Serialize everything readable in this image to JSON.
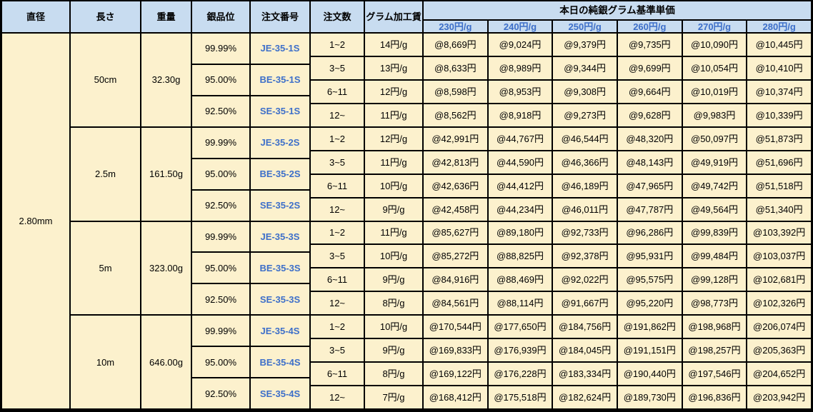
{
  "colors": {
    "header_bg": "#C8DCF0",
    "body_bg": "#FCF1CD",
    "accent_blue": "#3D6FC9",
    "grid_line": "#000000"
  },
  "table": {
    "headers": {
      "diameter": "直径",
      "length": "長さ",
      "weight": "重量",
      "purity": "銀品位",
      "order_no": "注文番号",
      "order_qty": "注文数",
      "gram_fee": "グラム加工賃",
      "price_group": "本日の純銀グラム基準単価",
      "price_columns": [
        "230円/g",
        "240円/g",
        "250円/g",
        "260円/g",
        "270円/g",
        "280円/g"
      ]
    },
    "diameter_value": "2.80mm",
    "blocks": [
      {
        "length": "50cm",
        "weight": "32.30g",
        "purities": [
          {
            "purity": "99.99%",
            "order_no": "JE-35-1S"
          },
          {
            "purity": "95.00%",
            "order_no": "BE-35-1S"
          },
          {
            "purity": "92.50%",
            "order_no": "SE-35-1S"
          }
        ],
        "tiers": [
          {
            "qty": "1~2",
            "fee": "14円/g",
            "prices": [
              "@8,669円",
              "@9,024円",
              "@9,379円",
              "@9,735円",
              "@10,090円",
              "@10,445円"
            ]
          },
          {
            "qty": "3~5",
            "fee": "13円/g",
            "prices": [
              "@8,633円",
              "@8,989円",
              "@9,344円",
              "@9,699円",
              "@10,054円",
              "@10,410円"
            ]
          },
          {
            "qty": "6~11",
            "fee": "12円/g",
            "prices": [
              "@8,598円",
              "@8,953円",
              "@9,308円",
              "@9,664円",
              "@10,019円",
              "@10,374円"
            ]
          },
          {
            "qty": "12~",
            "fee": "11円/g",
            "prices": [
              "@8,562円",
              "@8,918円",
              "@9,273円",
              "@9,628円",
              "@9,983円",
              "@10,339円"
            ]
          }
        ]
      },
      {
        "length": "2.5m",
        "weight": "161.50g",
        "purities": [
          {
            "purity": "99.99%",
            "order_no": "JE-35-2S"
          },
          {
            "purity": "95.00%",
            "order_no": "BE-35-2S"
          },
          {
            "purity": "92.50%",
            "order_no": "SE-35-2S"
          }
        ],
        "tiers": [
          {
            "qty": "1~2",
            "fee": "12円/g",
            "prices": [
              "@42,991円",
              "@44,767円",
              "@46,544円",
              "@48,320円",
              "@50,097円",
              "@51,873円"
            ]
          },
          {
            "qty": "3~5",
            "fee": "11円/g",
            "prices": [
              "@42,813円",
              "@44,590円",
              "@46,366円",
              "@48,143円",
              "@49,919円",
              "@51,696円"
            ]
          },
          {
            "qty": "6~11",
            "fee": "10円/g",
            "prices": [
              "@42,636円",
              "@44,412円",
              "@46,189円",
              "@47,965円",
              "@49,742円",
              "@51,518円"
            ]
          },
          {
            "qty": "12~",
            "fee": "9円/g",
            "prices": [
              "@42,458円",
              "@44,234円",
              "@46,011円",
              "@47,787円",
              "@49,564円",
              "@51,340円"
            ]
          }
        ]
      },
      {
        "length": "5m",
        "weight": "323.00g",
        "purities": [
          {
            "purity": "99.99%",
            "order_no": "JE-35-3S"
          },
          {
            "purity": "95.00%",
            "order_no": "BE-35-3S"
          },
          {
            "purity": "92.50%",
            "order_no": "SE-35-3S"
          }
        ],
        "tiers": [
          {
            "qty": "1~2",
            "fee": "11円/g",
            "prices": [
              "@85,627円",
              "@89,180円",
              "@92,733円",
              "@96,286円",
              "@99,839円",
              "@103,392円"
            ]
          },
          {
            "qty": "3~5",
            "fee": "10円/g",
            "prices": [
              "@85,272円",
              "@88,825円",
              "@92,378円",
              "@95,931円",
              "@99,484円",
              "@103,037円"
            ]
          },
          {
            "qty": "6~11",
            "fee": "9円/g",
            "prices": [
              "@84,916円",
              "@88,469円",
              "@92,022円",
              "@95,575円",
              "@99,128円",
              "@102,681円"
            ]
          },
          {
            "qty": "12~",
            "fee": "8円/g",
            "prices": [
              "@84,561円",
              "@88,114円",
              "@91,667円",
              "@95,220円",
              "@98,773円",
              "@102,326円"
            ]
          }
        ]
      },
      {
        "length": "10m",
        "weight": "646.00g",
        "purities": [
          {
            "purity": "99.99%",
            "order_no": "JE-35-4S"
          },
          {
            "purity": "95.00%",
            "order_no": "BE-35-4S"
          },
          {
            "purity": "92.50%",
            "order_no": "SE-35-4S"
          }
        ],
        "tiers": [
          {
            "qty": "1~2",
            "fee": "10円/g",
            "prices": [
              "@170,544円",
              "@177,650円",
              "@184,756円",
              "@191,862円",
              "@198,968円",
              "@206,074円"
            ]
          },
          {
            "qty": "3~5",
            "fee": "9円/g",
            "prices": [
              "@169,833円",
              "@176,939円",
              "@184,045円",
              "@191,151円",
              "@198,257円",
              "@205,363円"
            ]
          },
          {
            "qty": "6~11",
            "fee": "8円/g",
            "prices": [
              "@169,122円",
              "@176,228円",
              "@183,334円",
              "@190,440円",
              "@197,546円",
              "@204,652円"
            ]
          },
          {
            "qty": "12~",
            "fee": "7円/g",
            "prices": [
              "@168,412円",
              "@175,518円",
              "@182,624円",
              "@189,730円",
              "@196,836円",
              "@203,942円"
            ]
          }
        ]
      }
    ]
  }
}
